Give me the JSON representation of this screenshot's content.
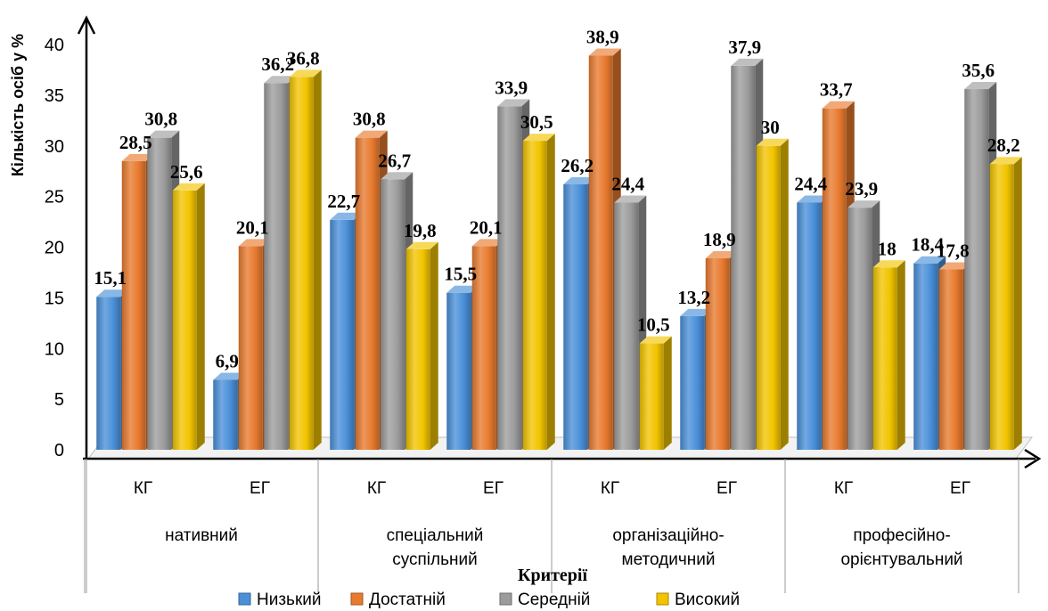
{
  "chart_data": {
    "type": "bar",
    "ylabel": "Кількість осіб у %",
    "xlabel": "Критерії",
    "ylim": [
      0,
      40
    ],
    "yticks": [
      "0",
      "5",
      "10",
      "15",
      "20",
      "25",
      "30",
      "35",
      "40"
    ],
    "groups": [
      {
        "label": "нативний",
        "label_lines": [
          "нативний"
        ],
        "subgroups": [
          "КГ",
          "ЕГ"
        ]
      },
      {
        "label": "спеціальний суспільний",
        "label_lines": [
          "спеціальний",
          "суспільний"
        ],
        "subgroups": [
          "КГ",
          "ЕГ"
        ]
      },
      {
        "label": "організаційно-методичний",
        "label_lines": [
          "організаційно-",
          "методичний"
        ],
        "subgroups": [
          "КГ",
          "ЕГ"
        ]
      },
      {
        "label": "професійно-орієнтувальний",
        "label_lines": [
          "професійно-",
          "орієнтувальний"
        ],
        "subgroups": [
          "КГ",
          "ЕГ"
        ]
      }
    ],
    "categories": [
      "нативний КГ",
      "нативний ЕГ",
      "спеціальний суспільний КГ",
      "спеціальний суспільний ЕГ",
      "організаційно-методичний КГ",
      "організаційно-методичний ЕГ",
      "професійно-орієнтувальний КГ",
      "професійно-орієнтувальний ЕГ"
    ],
    "series": [
      {
        "name": "Низький",
        "color": "#4a90d9",
        "values": [
          15.1,
          6.9,
          22.7,
          15.5,
          26.2,
          13.2,
          24.4,
          18.4
        ],
        "labels": [
          "15,1",
          "6,9",
          "22,7",
          "15,5",
          "26,2",
          "13,2",
          "24,4",
          "18,4"
        ]
      },
      {
        "name": "Достатній",
        "color": "#e87a2e",
        "values": [
          28.5,
          20.1,
          30.8,
          20.1,
          38.9,
          18.9,
          33.7,
          17.8
        ],
        "labels": [
          "28,5",
          "20,1",
          "30,8",
          "20,1",
          "38,9",
          "18,9",
          "33,7",
          "17,8"
        ]
      },
      {
        "name": "Середній",
        "color": "#9c9c9c",
        "values": [
          30.8,
          36.2,
          26.7,
          33.9,
          24.4,
          37.9,
          23.9,
          35.6
        ],
        "labels": [
          "30,8",
          "36,2",
          "26,7",
          "33,9",
          "24,4",
          "37,9",
          "23,9",
          "35,6"
        ]
      },
      {
        "name": "Високий",
        "color": "#f2c400",
        "values": [
          25.6,
          36.8,
          19.8,
          30.5,
          10.5,
          30,
          18,
          28.2
        ],
        "labels": [
          "25,6",
          "36,8",
          "19,8",
          "30,5",
          "10,5",
          "30",
          "18",
          "28,2"
        ]
      }
    ],
    "grid": false,
    "legend_position": "bottom"
  }
}
